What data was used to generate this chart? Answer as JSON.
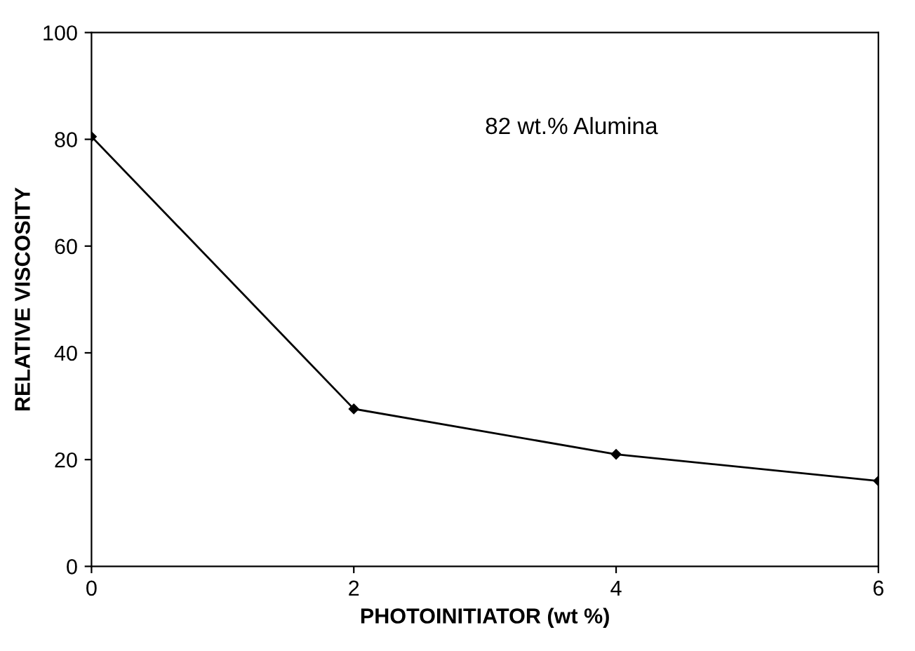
{
  "chart_data": {
    "type": "line",
    "xlabel": "PHOTOINITIATOR (wt %)",
    "ylabel": "RELATIVE VISCOSITY",
    "annotations": [
      "82 wt.% Alumina"
    ],
    "x": [
      0,
      2,
      4,
      6
    ],
    "series": [
      {
        "color": "#000000",
        "values": [
          80.5,
          29.5,
          21,
          16
        ]
      }
    ],
    "xlim": [
      0,
      6
    ],
    "ylim": [
      0,
      100
    ],
    "xticks": [
      0,
      2,
      4,
      6
    ],
    "yticks": [
      0,
      20,
      40,
      60,
      80,
      100
    ],
    "grid": false,
    "legend": false,
    "marker": "diamond",
    "line_style": "solid"
  }
}
